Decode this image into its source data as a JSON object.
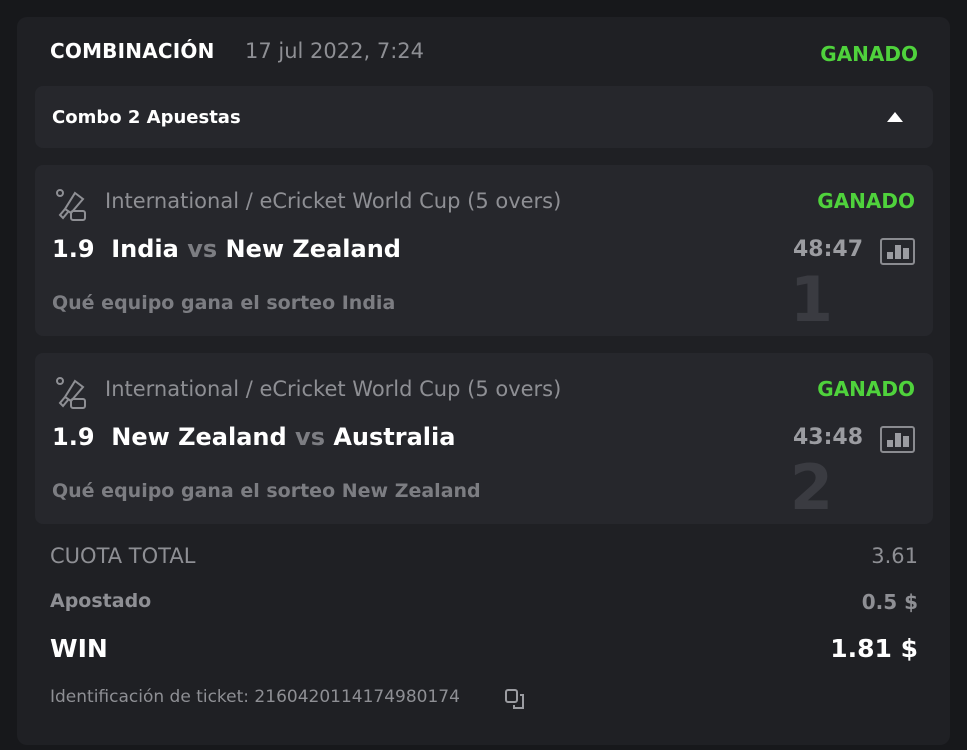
{
  "header": {
    "title": "COMBINACIÓN",
    "date": "17 jul 2022, 7:24",
    "status": "GANADO"
  },
  "combo": {
    "label": "Combo 2 Apuestas",
    "toggle_icon": "caret-up-icon"
  },
  "bets": [
    {
      "index": "1",
      "league": "International / eCricket World Cup (5 overs)",
      "status": "GANADO",
      "odds": "1.9",
      "team1": "India",
      "vs": "vs",
      "team2": "New Zealand",
      "score": "48:47",
      "market": "Qué equipo gana el sorteo India"
    },
    {
      "index": "2",
      "league": "International / eCricket World Cup (5 overs)",
      "status": "GANADO",
      "odds": "1.9",
      "team1": "New Zealand",
      "vs": "vs",
      "team2": "Australia",
      "score": "43:48",
      "market": "Qué equipo gana el sorteo New Zealand"
    }
  ],
  "summary": {
    "total_odds_label": "CUOTA TOTAL",
    "total_odds": "3.61",
    "stake_label": "Apostado",
    "stake": "0.5 $",
    "win_label": "WIN",
    "win": "1.81 $"
  },
  "ticket": {
    "label": "Identificación de ticket: 2160420114174980174"
  },
  "colors": {
    "win_green": "#4fd23c",
    "background": "#1f2024"
  }
}
